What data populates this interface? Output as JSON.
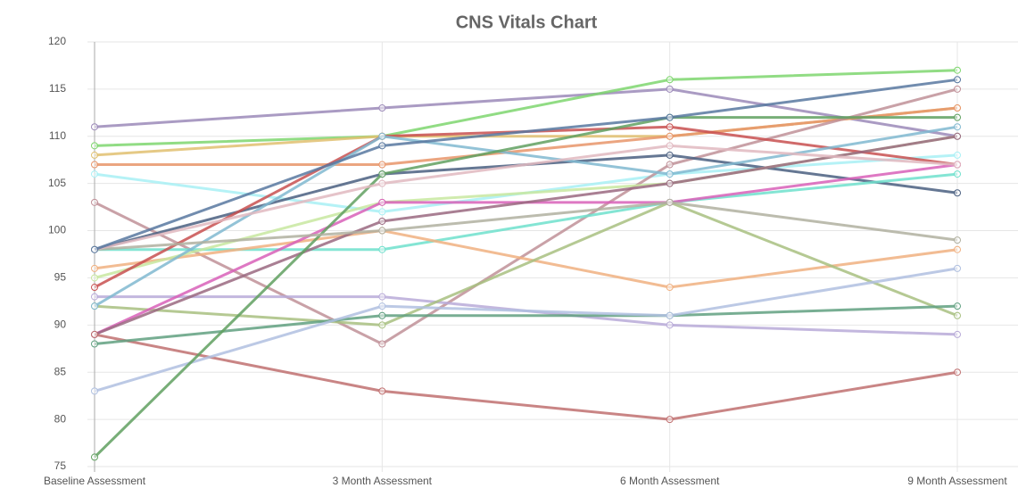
{
  "chart_data": {
    "type": "line",
    "title": "CNS Vitals Chart",
    "categories": [
      "Baseline Assessment",
      "3 Month Assessment",
      "6 Month Assessment",
      "9 Month Assessment"
    ],
    "ylim": [
      75,
      120
    ],
    "yticks": [
      75,
      80,
      85,
      90,
      95,
      100,
      105,
      110,
      115,
      120
    ],
    "grid": true,
    "series": [
      {
        "color": "#9b89b8",
        "values": [
          111,
          113,
          115,
          110
        ]
      },
      {
        "color": "#7ed66e",
        "values": [
          109,
          110,
          116,
          117
        ]
      },
      {
        "color": "#e0c070",
        "values": [
          108,
          110,
          110,
          113
        ]
      },
      {
        "color": "#e8956a",
        "values": [
          107,
          107,
          110,
          113
        ]
      },
      {
        "color": "#a8f0f5",
        "values": [
          106,
          102,
          106,
          108
        ]
      },
      {
        "color": "#c09098",
        "values": [
          103,
          88,
          107,
          115
        ]
      },
      {
        "color": "#4a5f80",
        "values": [
          98,
          106,
          108,
          104
        ]
      },
      {
        "color": "#6ee0cc",
        "values": [
          98,
          98,
          103,
          106
        ]
      },
      {
        "color": "#f0b080",
        "values": [
          96,
          100,
          94,
          98
        ]
      },
      {
        "color": "#c8e8a0",
        "values": [
          95,
          103,
          105,
          110
        ]
      },
      {
        "color": "#c85050",
        "values": [
          94,
          110,
          111,
          107
        ]
      },
      {
        "color": "#b8aad8",
        "values": [
          93,
          93,
          90,
          89
        ]
      },
      {
        "color": "#a8c080",
        "values": [
          92,
          90,
          103,
          91
        ]
      },
      {
        "color": "#80b8d0",
        "values": [
          92,
          110,
          106,
          111
        ]
      },
      {
        "color": "#d860b8",
        "values": [
          89,
          103,
          103,
          107
        ]
      },
      {
        "color": "#9a6880",
        "values": [
          89,
          101,
          105,
          110
        ]
      },
      {
        "color": "#c07070",
        "values": [
          89,
          83,
          80,
          85
        ]
      },
      {
        "color": "#60a080",
        "values": [
          88,
          91,
          91,
          92
        ]
      },
      {
        "color": "#b0c0e0",
        "values": [
          83,
          92,
          91,
          96
        ]
      },
      {
        "color": "#60a060",
        "values": [
          76,
          106,
          112,
          112
        ]
      },
      {
        "color": "#b0b0a0",
        "values": [
          98,
          100,
          103,
          99
        ]
      },
      {
        "color": "#e0b8c0",
        "values": [
          98,
          105,
          109,
          107
        ]
      },
      {
        "color": "#5878a0",
        "values": [
          98,
          109,
          112,
          116
        ]
      }
    ]
  }
}
